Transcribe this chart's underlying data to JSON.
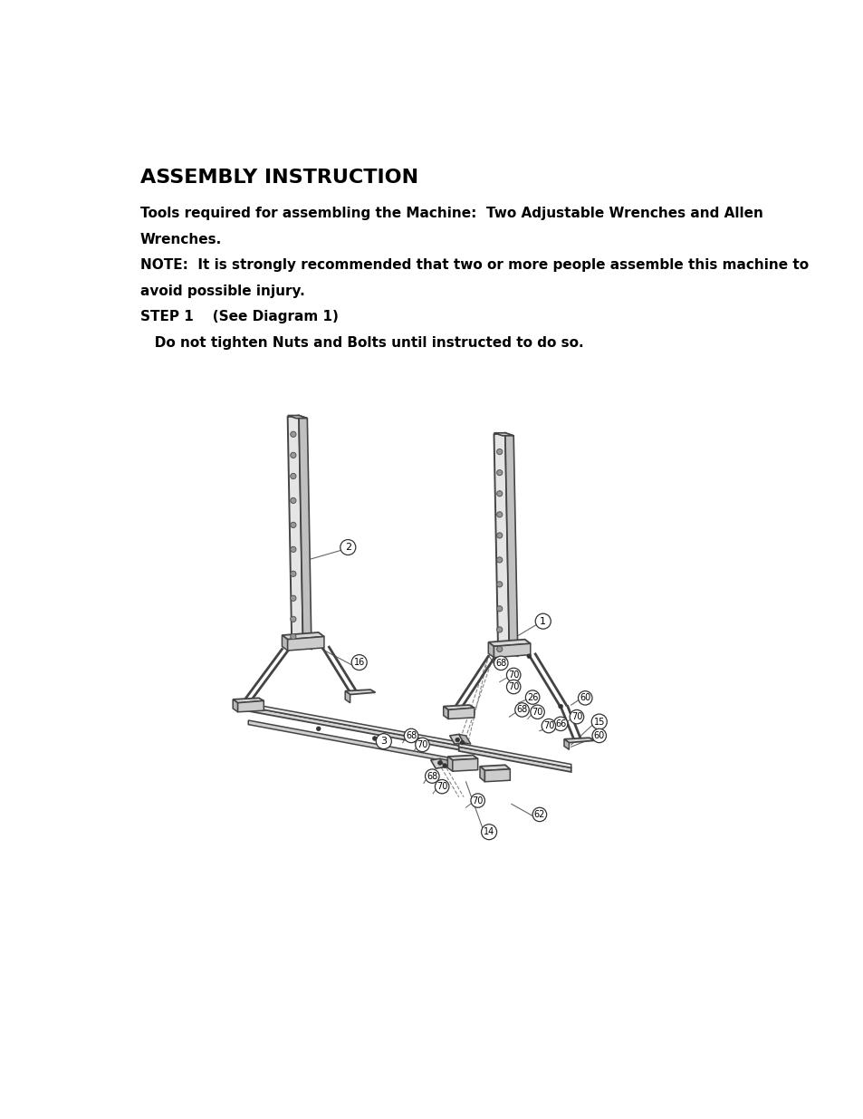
{
  "title": "ASSEMBLY INSTRUCTION",
  "line1": "Tools required for assembling the Machine:  Two Adjustable Wrenches and Allen",
  "line2": "Wrenches.",
  "line3": "NOTE:  It is strongly recommended that two or more people assemble this machine to",
  "line4": "avoid possible injury.",
  "line5": "STEP 1    (See Diagram 1)",
  "line6": "   Do not tighten Nuts and Bolts until instructed to do so.",
  "bg_color": "#ffffff",
  "text_color": "#000000",
  "title_fontsize": 16,
  "body_fontsize": 11
}
